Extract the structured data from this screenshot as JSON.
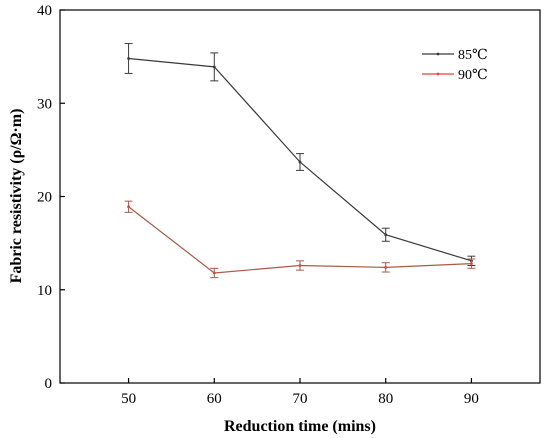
{
  "chart_data": {
    "type": "line",
    "title": "",
    "xlabel": "Reduction time (mins)",
    "ylabel": "Fabric resistivity (ρ/Ω·m)",
    "x": [
      50,
      60,
      70,
      80,
      90
    ],
    "xlim": [
      42,
      98
    ],
    "ylim": [
      0,
      40
    ],
    "xticks": [
      50,
      60,
      70,
      80,
      90
    ],
    "yticks": [
      0,
      10,
      20,
      30,
      40
    ],
    "grid": false,
    "legend_position": "top-right",
    "series": [
      {
        "name": "85℃",
        "color": "#3a3a3a",
        "values": [
          34.8,
          33.9,
          23.7,
          15.9,
          13.1
        ],
        "errors": [
          1.6,
          1.5,
          0.9,
          0.7,
          0.5
        ]
      },
      {
        "name": "90℃",
        "color": "#e8403a",
        "line_color": "#a85a48",
        "values": [
          18.9,
          11.8,
          12.6,
          12.4,
          12.8
        ],
        "errors": [
          0.6,
          0.5,
          0.5,
          0.5,
          0.5
        ]
      }
    ]
  }
}
